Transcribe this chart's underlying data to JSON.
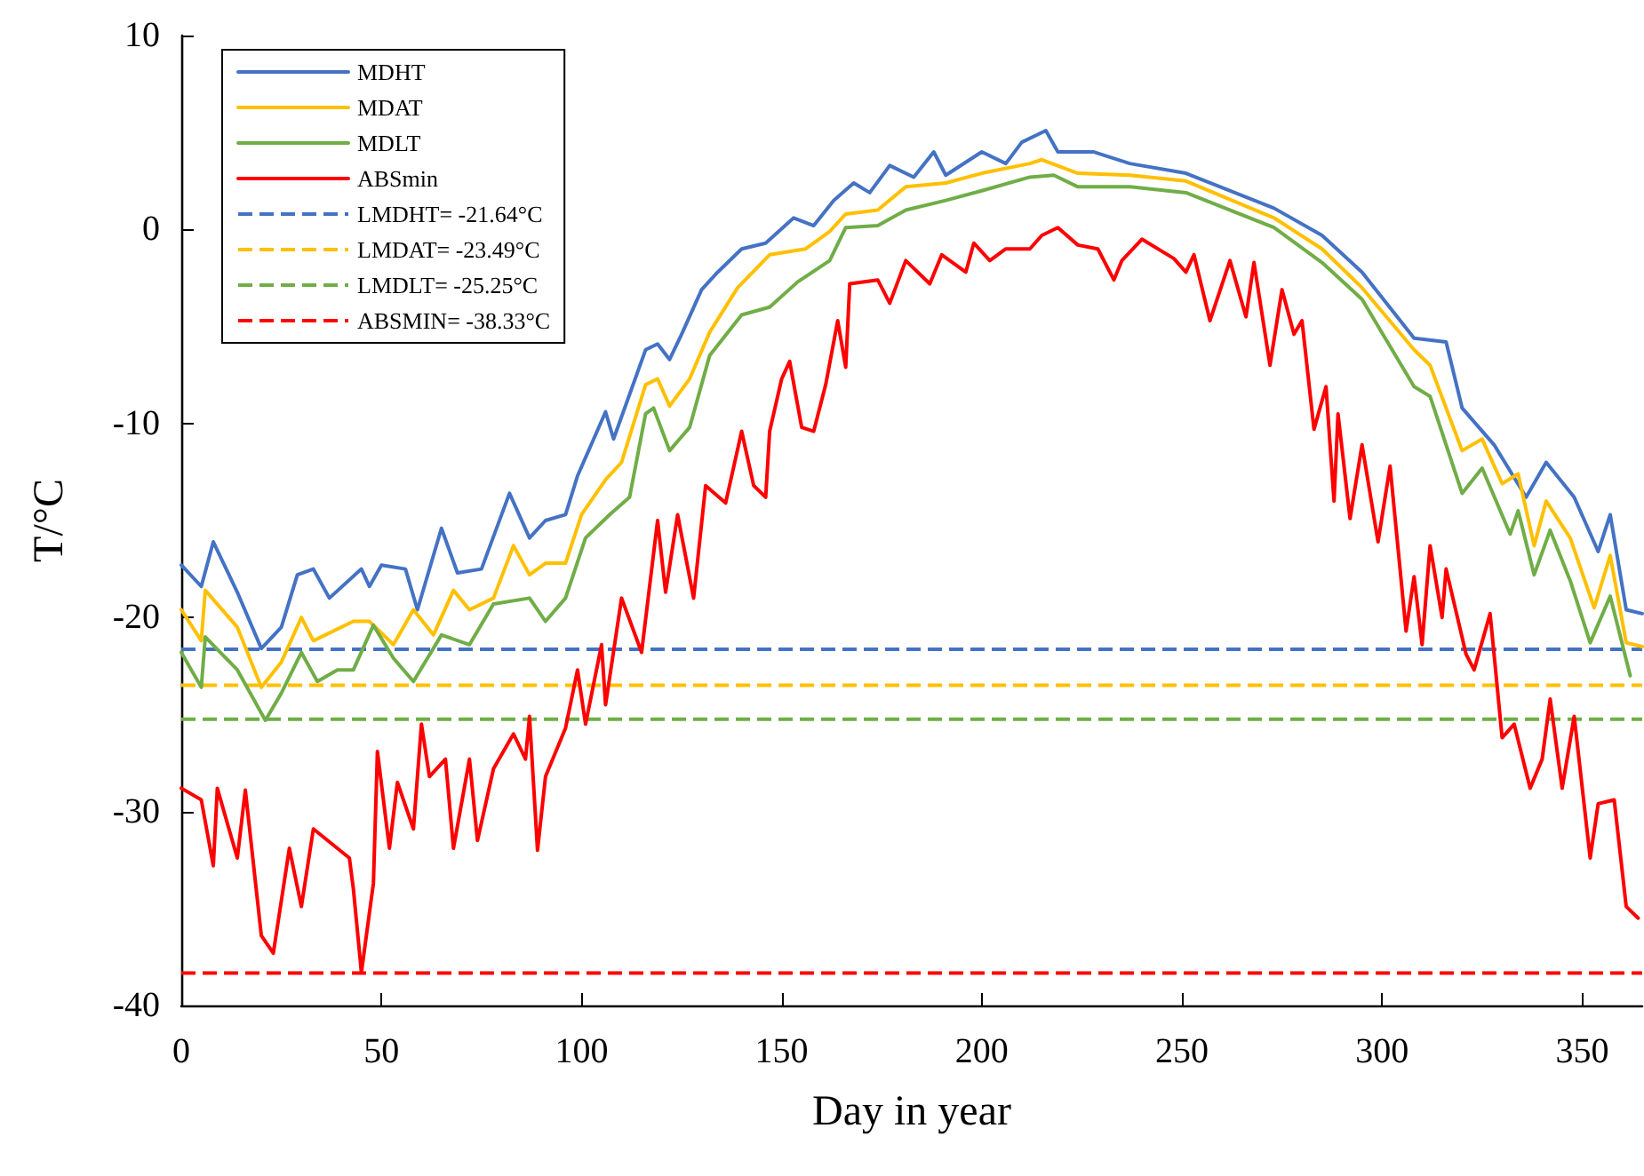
{
  "chart_data": {
    "type": "line",
    "xlabel": "Day in year",
    "ylabel": "T/°C",
    "xlim": [
      0,
      365
    ],
    "xticks": [
      0,
      50,
      100,
      150,
      200,
      250,
      300,
      350
    ],
    "ylim": [
      -40,
      10
    ],
    "yticks": [
      -40,
      -30,
      -20,
      -10,
      0,
      10
    ],
    "grid": false,
    "legend": "top left",
    "marker": "none",
    "line_style": "solid",
    "series": [
      {
        "name": "MDHT",
        "color": "#4472c4",
        "x": [
          0,
          5,
          8,
          14,
          20,
          25,
          29,
          33,
          37,
          45,
          47,
          50,
          56,
          59,
          65,
          69,
          75,
          82,
          87,
          91,
          96,
          99,
          106,
          108,
          116,
          119,
          122,
          125,
          130,
          134,
          140,
          146,
          153,
          158,
          163,
          168,
          172,
          177,
          183,
          188,
          191,
          200,
          206,
          210,
          216,
          219,
          228,
          237,
          251,
          273,
          285,
          295,
          308,
          316,
          320,
          328,
          336,
          341,
          348,
          354,
          357,
          361,
          365
        ],
        "values": [
          -17.3,
          -18.4,
          -16.1,
          -18.7,
          -21.6,
          -20.5,
          -17.8,
          -17.5,
          -19,
          -17.5,
          -18.4,
          -17.3,
          -17.5,
          -19.6,
          -15.4,
          -17.7,
          -17.5,
          -13.6,
          -15.9,
          -15,
          -14.7,
          -12.7,
          -9.4,
          -10.8,
          -6.2,
          -5.9,
          -6.7,
          -5.4,
          -3.1,
          -2.2,
          -1,
          -0.7,
          0.6,
          0.2,
          1.5,
          2.4,
          1.9,
          3.3,
          2.7,
          4,
          2.8,
          4,
          3.4,
          4.5,
          5.1,
          4,
          4,
          3.4,
          2.9,
          1.1,
          -0.3,
          -2.2,
          -5.6,
          -5.8,
          -9.2,
          -11.1,
          -13.8,
          -12,
          -13.8,
          -16.6,
          -14.7,
          -19.6,
          -19.8
        ]
      },
      {
        "name": "MDAT",
        "color": "#ffc000",
        "x": [
          0,
          5,
          6,
          14,
          20,
          25,
          30,
          33,
          43,
          47,
          53,
          58,
          63,
          68,
          72,
          78,
          83,
          87,
          91,
          96,
          100,
          106,
          110,
          116,
          119,
          122,
          127,
          132,
          139,
          147,
          156,
          162,
          166,
          174,
          181,
          191,
          200,
          212,
          215,
          224,
          237,
          251,
          273,
          285,
          295,
          308,
          312,
          320,
          325,
          330,
          334,
          338,
          341,
          347,
          353,
          357,
          361,
          365
        ],
        "values": [
          -19.6,
          -21.2,
          -18.6,
          -20.5,
          -23.6,
          -22.3,
          -20,
          -21.2,
          -20.2,
          -20.2,
          -21.4,
          -19.6,
          -20.9,
          -18.6,
          -19.6,
          -19,
          -16.3,
          -17.8,
          -17.2,
          -17.2,
          -14.7,
          -12.9,
          -12,
          -8,
          -7.7,
          -9.1,
          -7.7,
          -5.3,
          -3,
          -1.3,
          -1,
          -0.1,
          0.8,
          1,
          2.2,
          2.4,
          2.9,
          3.4,
          3.6,
          2.9,
          2.8,
          2.5,
          0.6,
          -1,
          -3,
          -6.2,
          -7,
          -11.4,
          -10.8,
          -13.1,
          -12.6,
          -16.3,
          -14,
          -15.9,
          -19.5,
          -16.8,
          -21.3,
          -21.5
        ]
      },
      {
        "name": "MDLT",
        "color": "#70ad47",
        "x": [
          0,
          5,
          6,
          14,
          21,
          25,
          30,
          34,
          39,
          43,
          48,
          53,
          58,
          65,
          72,
          78,
          87,
          91,
          96,
          101,
          107,
          112,
          116,
          118,
          122,
          127,
          132,
          140,
          147,
          154,
          162,
          166,
          174,
          181,
          191,
          200,
          212,
          218,
          224,
          237,
          251,
          273,
          285,
          295,
          308,
          312,
          320,
          325,
          332,
          334,
          338,
          342,
          347,
          352,
          357,
          362
        ],
        "values": [
          -21.8,
          -23.6,
          -21,
          -22.7,
          -25.3,
          -23.9,
          -21.8,
          -23.3,
          -22.7,
          -22.7,
          -20.4,
          -22.1,
          -23.3,
          -20.9,
          -21.4,
          -19.3,
          -19,
          -20.2,
          -19,
          -15.9,
          -14.7,
          -13.8,
          -9.5,
          -9.2,
          -11.4,
          -10.2,
          -6.5,
          -4.4,
          -4,
          -2.7,
          -1.6,
          0.1,
          0.2,
          1,
          1.5,
          2,
          2.7,
          2.8,
          2.2,
          2.2,
          1.9,
          0.1,
          -1.7,
          -3.6,
          -8.1,
          -8.6,
          -13.6,
          -12.3,
          -15.7,
          -14.5,
          -17.8,
          -15.5,
          -18.1,
          -21.3,
          -18.9,
          -23
        ]
      },
      {
        "name": "ABSmin",
        "color": "#ff0000",
        "x": [
          0,
          5,
          8,
          9,
          14,
          16,
          20,
          23,
          27,
          30,
          33,
          42,
          43,
          45,
          48,
          49,
          52,
          54,
          58,
          60,
          62,
          66,
          68,
          72,
          74,
          78,
          83,
          86,
          87,
          89,
          91,
          96,
          99,
          101,
          105,
          106,
          110,
          115,
          119,
          121,
          124,
          128,
          131,
          136,
          140,
          143,
          146,
          147,
          150,
          152,
          155,
          158,
          161,
          164,
          166,
          167,
          174,
          177,
          181,
          187,
          190,
          196,
          198,
          202,
          206,
          212,
          215,
          219,
          224,
          229,
          233,
          235,
          240,
          248,
          251,
          253,
          257,
          262,
          266,
          268,
          272,
          275,
          278,
          280,
          283,
          286,
          288,
          289,
          292,
          295,
          299,
          302,
          306,
          308,
          310,
          312,
          315,
          316,
          321,
          323,
          327,
          330,
          333,
          337,
          340,
          342,
          345,
          348,
          352,
          354,
          358,
          361,
          364
        ],
        "values": [
          -28.8,
          -29.4,
          -32.8,
          -28.8,
          -32.4,
          -28.9,
          -36.4,
          -37.3,
          -31.9,
          -34.9,
          -30.9,
          -32.4,
          -34,
          -38.3,
          -33.7,
          -26.9,
          -31.9,
          -28.5,
          -30.9,
          -25.5,
          -28.2,
          -27.3,
          -31.9,
          -27.3,
          -31.5,
          -27.8,
          -26,
          -27.3,
          -25.1,
          -32,
          -28.2,
          -25.7,
          -22.7,
          -25.5,
          -21.4,
          -24.5,
          -19,
          -21.8,
          -15,
          -18.7,
          -14.7,
          -19,
          -13.2,
          -14.1,
          -10.4,
          -13.2,
          -13.8,
          -10.4,
          -7.7,
          -6.8,
          -10.2,
          -10.4,
          -8,
          -4.7,
          -7.1,
          -2.8,
          -2.6,
          -3.8,
          -1.6,
          -2.8,
          -1.3,
          -2.2,
          -0.7,
          -1.6,
          -1,
          -1,
          -0.3,
          0.1,
          -0.8,
          -1,
          -2.6,
          -1.6,
          -0.5,
          -1.5,
          -2.2,
          -1.3,
          -4.7,
          -1.6,
          -4.5,
          -1.7,
          -7,
          -3.1,
          -5.4,
          -4.7,
          -10.3,
          -8.1,
          -14,
          -9.5,
          -14.9,
          -11.1,
          -16.1,
          -12.2,
          -20.7,
          -17.9,
          -21.4,
          -16.3,
          -20,
          -17.5,
          -21.9,
          -22.7,
          -19.8,
          -26.2,
          -25.5,
          -28.8,
          -27.3,
          -24.2,
          -28.8,
          -25.1,
          -32.4,
          -29.6,
          -29.4,
          -34.9,
          -35.5
        ]
      }
    ],
    "ref_lines": [
      {
        "axis": "y",
        "value": -21.64,
        "label": "LMDHT= -21.64°C",
        "color": "#4472c4",
        "line_style": "dashed"
      },
      {
        "axis": "y",
        "value": -23.49,
        "label": "LMDAT= -23.49°C",
        "color": "#ffc000",
        "line_style": "dashed"
      },
      {
        "axis": "y",
        "value": -25.25,
        "label": "LMDLT= -25.25°C",
        "color": "#70ad47",
        "line_style": "dashed"
      },
      {
        "axis": "y",
        "value": -38.33,
        "label": "ABSMIN= -38.33°C",
        "color": "#ff0000",
        "line_style": "dashed"
      }
    ]
  }
}
